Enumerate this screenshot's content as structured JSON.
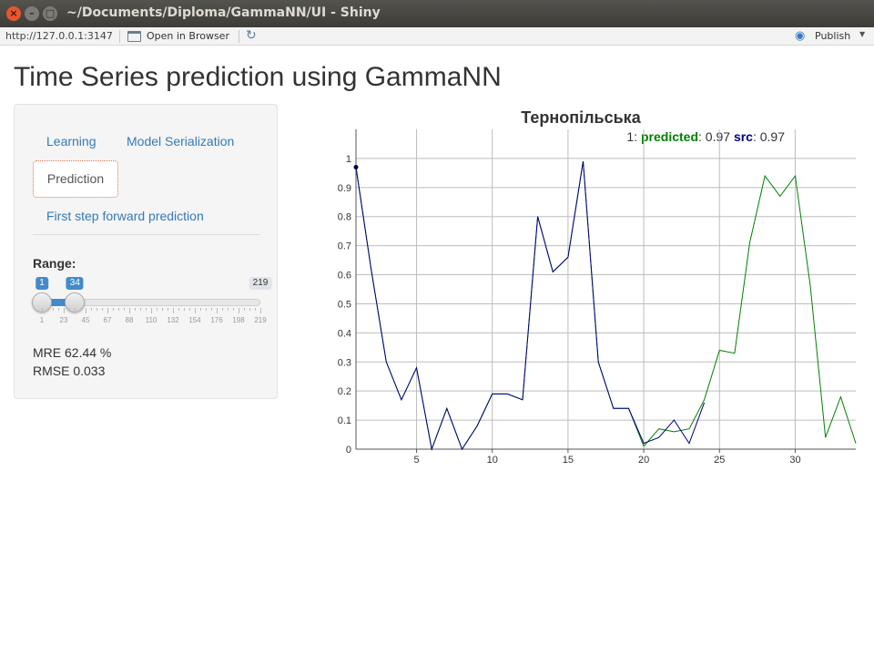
{
  "window": {
    "title": "~/Documents/Diploma/GammaNN/UI - Shiny",
    "close_glyph": "×",
    "min_glyph": "–",
    "max_glyph": "□"
  },
  "toolbar": {
    "url": "http://127.0.0.1:3147",
    "open_in_browser": "Open in Browser",
    "publish": "Publish"
  },
  "page": {
    "title": "Time Series prediction using GammaNN"
  },
  "sidebar": {
    "tabs": [
      {
        "label": "Learning"
      },
      {
        "label": "Model Serialization"
      },
      {
        "label": "Prediction",
        "active": true
      },
      {
        "label": "First step forward prediction"
      }
    ],
    "range": {
      "label": "Range:",
      "from": 1,
      "to": 34,
      "min": 1,
      "max": 219,
      "from_label": "1",
      "to_label": "34",
      "max_label": "219",
      "tick_labels": [
        "1",
        "23",
        "45",
        "67",
        "88",
        "110",
        "132",
        "154",
        "176",
        "198",
        "219"
      ]
    },
    "metrics": {
      "mre": "MRE 62.44 %",
      "rmse": "RMSE 0.033"
    }
  },
  "chart_data": {
    "type": "line",
    "title": "Тернопільська",
    "legend": {
      "index": "1",
      "predicted_label": "predicted",
      "predicted_value": "0.97",
      "src_label": "src",
      "src_value": "0.97",
      "placement": "top-right"
    },
    "xlim": [
      1,
      34
    ],
    "ylim": [
      0,
      1.1
    ],
    "x_ticks": [
      5,
      10,
      15,
      20,
      25,
      30
    ],
    "y_ticks": [
      0,
      0.1,
      0.2,
      0.3,
      0.4,
      0.5,
      0.6,
      0.7,
      0.8,
      0.9,
      1
    ],
    "y_tick_labels": [
      "0",
      "0.1",
      "0.2",
      "0.3",
      "0.4",
      "0.5",
      "0.6",
      "0.7",
      "0.8",
      "0.9",
      "1"
    ],
    "grid": true,
    "series": [
      {
        "name": "predicted",
        "color": "#008000",
        "x": [
          1,
          2,
          3,
          4,
          5,
          6,
          7,
          8,
          9,
          10,
          11,
          12,
          13,
          14,
          15,
          16,
          17,
          18,
          19,
          20,
          21,
          22,
          23,
          24,
          25,
          26,
          27,
          28,
          29,
          30,
          31,
          32,
          33,
          34
        ],
        "values": [
          0.97,
          0.62,
          0.3,
          0.17,
          0.28,
          0.0,
          0.14,
          0.0,
          0.08,
          0.19,
          0.19,
          0.17,
          0.8,
          0.61,
          0.66,
          0.99,
          0.3,
          0.14,
          0.14,
          0.01,
          0.07,
          0.06,
          0.07,
          0.17,
          0.34,
          0.33,
          0.71,
          0.94,
          0.87,
          0.94,
          0.56,
          0.04,
          0.18,
          0.02
        ]
      },
      {
        "name": "src",
        "color": "#000080",
        "x": [
          1,
          2,
          3,
          4,
          5,
          6,
          7,
          8,
          9,
          10,
          11,
          12,
          13,
          14,
          15,
          16,
          17,
          18,
          19,
          20,
          21,
          22,
          23,
          24
        ],
        "values": [
          0.97,
          0.62,
          0.3,
          0.17,
          0.28,
          0.0,
          0.14,
          0.0,
          0.08,
          0.19,
          0.19,
          0.17,
          0.8,
          0.61,
          0.66,
          0.99,
          0.3,
          0.14,
          0.14,
          0.02,
          0.04,
          0.1,
          0.02,
          0.16
        ]
      }
    ]
  }
}
